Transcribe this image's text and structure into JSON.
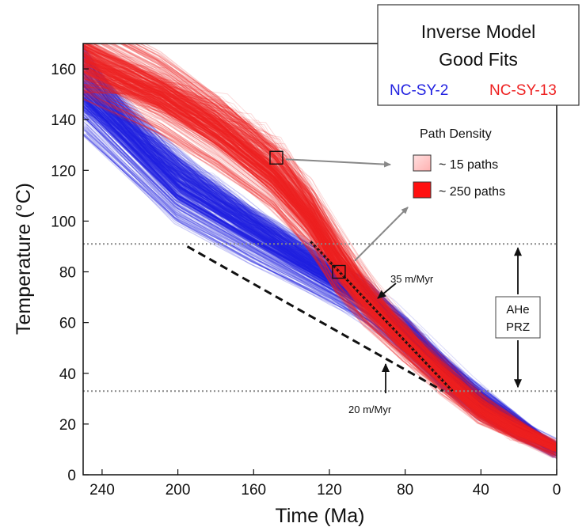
{
  "chart_data": {
    "type": "line",
    "xlabel": "Time (Ma)",
    "ylabel": "Temperature (°C)",
    "xlim": [
      250,
      0
    ],
    "ylim": [
      0,
      170
    ],
    "x_reversed": true,
    "x_ticks": [
      240,
      200,
      160,
      120,
      80,
      40,
      0
    ],
    "y_ticks": [
      0,
      20,
      40,
      60,
      80,
      100,
      120,
      140,
      160
    ],
    "grid": false,
    "legend": {
      "title_line1": "Inverse Model",
      "title_line2": "Good Fits",
      "placement": "top-right",
      "series_names": [
        "NC-SY-2",
        "NC-SY-13"
      ]
    },
    "path_density": {
      "title": "Path Density",
      "low_label": "~ 15 paths",
      "high_label": "~ 250 paths"
    },
    "series": [
      {
        "name": "NC-SY-2",
        "color": "#1f1fe0",
        "envelope_upper": [
          [
            250,
            170
          ],
          [
            220,
            150
          ],
          [
            180,
            125
          ],
          [
            140,
            100
          ],
          [
            120,
            90
          ],
          [
            100,
            80
          ],
          [
            80,
            65
          ],
          [
            60,
            50
          ],
          [
            40,
            35
          ],
          [
            20,
            22
          ],
          [
            0,
            12
          ]
        ],
        "envelope_lower": [
          [
            250,
            140
          ],
          [
            220,
            125
          ],
          [
            180,
            105
          ],
          [
            160,
            95
          ],
          [
            140,
            85
          ],
          [
            120,
            75
          ],
          [
            100,
            65
          ],
          [
            80,
            52
          ],
          [
            60,
            40
          ],
          [
            40,
            28
          ],
          [
            20,
            18
          ],
          [
            0,
            8
          ]
        ],
        "best_fit": [
          [
            250,
            150
          ],
          [
            200,
            112
          ],
          [
            160,
            94
          ],
          [
            120,
            77
          ],
          [
            100,
            68
          ],
          [
            80,
            55
          ],
          [
            60,
            40
          ],
          [
            40,
            27
          ],
          [
            20,
            18
          ],
          [
            0,
            10
          ]
        ]
      },
      {
        "name": "NC-SY-13",
        "color": "#ee2020",
        "envelope_upper": [
          [
            250,
            170
          ],
          [
            200,
            168
          ],
          [
            160,
            155
          ],
          [
            140,
            145
          ],
          [
            120,
            115
          ],
          [
            100,
            85
          ],
          [
            80,
            65
          ],
          [
            60,
            50
          ],
          [
            40,
            32
          ],
          [
            20,
            20
          ],
          [
            0,
            12
          ]
        ],
        "envelope_lower": [
          [
            250,
            150
          ],
          [
            200,
            135
          ],
          [
            160,
            115
          ],
          [
            140,
            100
          ],
          [
            130,
            90
          ],
          [
            115,
            75
          ],
          [
            100,
            60
          ],
          [
            80,
            45
          ],
          [
            60,
            32
          ],
          [
            40,
            22
          ],
          [
            20,
            15
          ],
          [
            0,
            8
          ]
        ],
        "best_fit": [
          [
            250,
            165
          ],
          [
            210,
            150
          ],
          [
            180,
            135
          ],
          [
            150,
            117
          ],
          [
            130,
            100
          ],
          [
            115,
            80
          ],
          [
            100,
            67
          ],
          [
            80,
            52
          ],
          [
            60,
            38
          ],
          [
            40,
            25
          ],
          [
            20,
            17
          ],
          [
            0,
            10
          ]
        ]
      }
    ],
    "reference_lines": [
      {
        "y": 91,
        "style": "dotted",
        "color": "#888888"
      },
      {
        "y": 33,
        "style": "dotted",
        "color": "#888888"
      }
    ],
    "rate_lines": [
      {
        "label": "35 m/Myr",
        "from": [
          130,
          92
        ],
        "to": [
          55,
          33
        ]
      },
      {
        "label": "20 m/Myr",
        "from": [
          195,
          90
        ],
        "to": [
          60,
          33
        ]
      }
    ],
    "prz_label_line1": "AHe",
    "prz_label_line2": "PRZ",
    "markers": [
      {
        "name": "low-density-marker",
        "x": 148,
        "y": 125
      },
      {
        "name": "high-density-marker",
        "x": 115,
        "y": 80
      }
    ]
  }
}
